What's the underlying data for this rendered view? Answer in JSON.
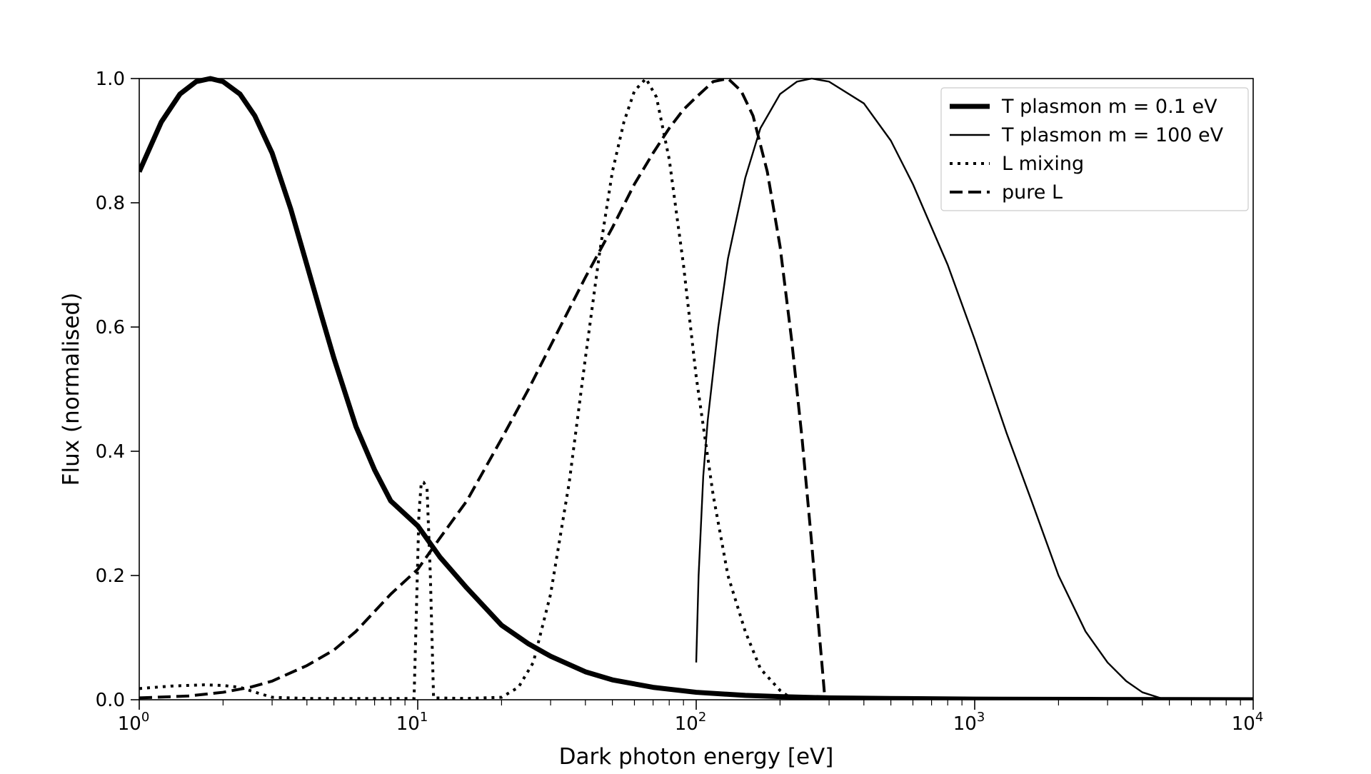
{
  "chart_data": {
    "type": "line",
    "title": "",
    "xlabel": "Dark photon energy [eV]",
    "ylabel": "Flux (normalised)",
    "xscale": "log",
    "xlim": [
      1,
      10000
    ],
    "ylim": [
      0.0,
      1.0
    ],
    "xticks": [
      {
        "value": 1,
        "base": "10",
        "exp": "0"
      },
      {
        "value": 10,
        "base": "10",
        "exp": "1"
      },
      {
        "value": 100,
        "base": "10",
        "exp": "2"
      },
      {
        "value": 1000,
        "base": "10",
        "exp": "3"
      },
      {
        "value": 10000,
        "base": "10",
        "exp": "4"
      }
    ],
    "yticks": [
      {
        "value": 0.0,
        "label": "0.0"
      },
      {
        "value": 0.2,
        "label": "0.2"
      },
      {
        "value": 0.4,
        "label": "0.4"
      },
      {
        "value": 0.6,
        "label": "0.6"
      },
      {
        "value": 0.8,
        "label": "0.8"
      },
      {
        "value": 1.0,
        "label": "1.0"
      }
    ],
    "grid": false,
    "legend_position": "top-right",
    "series": [
      {
        "name": "T plasmon m = 0.1 eV",
        "style": "thick-solid",
        "color": "#000000",
        "points": [
          [
            1.0,
            0.85
          ],
          [
            1.2,
            0.93
          ],
          [
            1.4,
            0.975
          ],
          [
            1.6,
            0.995
          ],
          [
            1.8,
            1.0
          ],
          [
            2.0,
            0.995
          ],
          [
            2.3,
            0.975
          ],
          [
            2.6,
            0.94
          ],
          [
            3.0,
            0.88
          ],
          [
            3.5,
            0.79
          ],
          [
            4.0,
            0.7
          ],
          [
            4.5,
            0.62
          ],
          [
            5.0,
            0.55
          ],
          [
            6.0,
            0.44
          ],
          [
            7.0,
            0.37
          ],
          [
            8.0,
            0.32
          ],
          [
            10.0,
            0.28
          ],
          [
            12.0,
            0.23
          ],
          [
            15.0,
            0.18
          ],
          [
            20.0,
            0.12
          ],
          [
            25.0,
            0.09
          ],
          [
            30.0,
            0.07
          ],
          [
            40.0,
            0.045
          ],
          [
            50.0,
            0.032
          ],
          [
            70.0,
            0.02
          ],
          [
            100.0,
            0.012
          ],
          [
            150.0,
            0.007
          ],
          [
            200.0,
            0.005
          ],
          [
            300.0,
            0.003
          ],
          [
            500.0,
            0.002
          ],
          [
            1000.0,
            0.001
          ],
          [
            3000.0,
            0.0005
          ],
          [
            10000.0,
            0.0
          ]
        ]
      },
      {
        "name": "T plasmon m = 100 eV",
        "style": "thin-solid",
        "color": "#000000",
        "points": [
          [
            100.0,
            0.06
          ],
          [
            102.0,
            0.2
          ],
          [
            106.0,
            0.36
          ],
          [
            110.0,
            0.45
          ],
          [
            120.0,
            0.6
          ],
          [
            130.0,
            0.71
          ],
          [
            150.0,
            0.84
          ],
          [
            170.0,
            0.92
          ],
          [
            200.0,
            0.975
          ],
          [
            230.0,
            0.995
          ],
          [
            260.0,
            1.0
          ],
          [
            300.0,
            0.995
          ],
          [
            400.0,
            0.96
          ],
          [
            500.0,
            0.9
          ],
          [
            600.0,
            0.83
          ],
          [
            800.0,
            0.7
          ],
          [
            1000.0,
            0.58
          ],
          [
            1300.0,
            0.43
          ],
          [
            1600.0,
            0.32
          ],
          [
            2000.0,
            0.2
          ],
          [
            2500.0,
            0.11
          ],
          [
            3000.0,
            0.06
          ],
          [
            3500.0,
            0.03
          ],
          [
            4000.0,
            0.012
          ],
          [
            4700.0,
            0.002
          ],
          [
            5000.0,
            0.0
          ],
          [
            10000.0,
            0.0
          ]
        ]
      },
      {
        "name": "L mixing",
        "style": "dotted",
        "color": "#000000",
        "points": [
          [
            1.0,
            0.018
          ],
          [
            1.3,
            0.022
          ],
          [
            1.7,
            0.024
          ],
          [
            2.0,
            0.023
          ],
          [
            2.3,
            0.02
          ],
          [
            2.7,
            0.01
          ],
          [
            3.0,
            0.004
          ],
          [
            4.0,
            0.002
          ],
          [
            6.0,
            0.002
          ],
          [
            9.7,
            0.002
          ],
          [
            9.9,
            0.15
          ],
          [
            10.1,
            0.3
          ],
          [
            10.3,
            0.35
          ],
          [
            10.5,
            0.35
          ],
          [
            10.8,
            0.34
          ],
          [
            11.1,
            0.2
          ],
          [
            11.4,
            0.003
          ],
          [
            15.0,
            0.002
          ],
          [
            20.0,
            0.004
          ],
          [
            23.0,
            0.02
          ],
          [
            26.0,
            0.06
          ],
          [
            30.0,
            0.17
          ],
          [
            35.0,
            0.35
          ],
          [
            40.0,
            0.55
          ],
          [
            45.0,
            0.72
          ],
          [
            50.0,
            0.85
          ],
          [
            55.0,
            0.93
          ],
          [
            60.0,
            0.98
          ],
          [
            66.0,
            1.0
          ],
          [
            72.0,
            0.97
          ],
          [
            80.0,
            0.87
          ],
          [
            90.0,
            0.7
          ],
          [
            100.0,
            0.52
          ],
          [
            115.0,
            0.33
          ],
          [
            130.0,
            0.2
          ],
          [
            150.0,
            0.11
          ],
          [
            170.0,
            0.05
          ],
          [
            200.0,
            0.015
          ],
          [
            215.0,
            0.005
          ]
        ]
      },
      {
        "name": "pure L",
        "style": "dashed",
        "color": "#000000",
        "points": [
          [
            1.0,
            0.003
          ],
          [
            1.5,
            0.006
          ],
          [
            2.0,
            0.012
          ],
          [
            2.5,
            0.02
          ],
          [
            3.0,
            0.03
          ],
          [
            4.0,
            0.055
          ],
          [
            5.0,
            0.08
          ],
          [
            6.0,
            0.11
          ],
          [
            8.0,
            0.17
          ],
          [
            10.0,
            0.21
          ],
          [
            12.0,
            0.26
          ],
          [
            15.0,
            0.32
          ],
          [
            20.0,
            0.42
          ],
          [
            25.0,
            0.5
          ],
          [
            30.0,
            0.57
          ],
          [
            40.0,
            0.68
          ],
          [
            50.0,
            0.76
          ],
          [
            60.0,
            0.83
          ],
          [
            70.0,
            0.88
          ],
          [
            80.0,
            0.92
          ],
          [
            90.0,
            0.95
          ],
          [
            100.0,
            0.97
          ],
          [
            115.0,
            0.995
          ],
          [
            130.0,
            1.0
          ],
          [
            145.0,
            0.98
          ],
          [
            160.0,
            0.94
          ],
          [
            180.0,
            0.85
          ],
          [
            200.0,
            0.73
          ],
          [
            220.0,
            0.58
          ],
          [
            240.0,
            0.42
          ],
          [
            260.0,
            0.25
          ],
          [
            275.0,
            0.12
          ],
          [
            285.0,
            0.04
          ],
          [
            290.0,
            0.0
          ]
        ]
      }
    ]
  }
}
